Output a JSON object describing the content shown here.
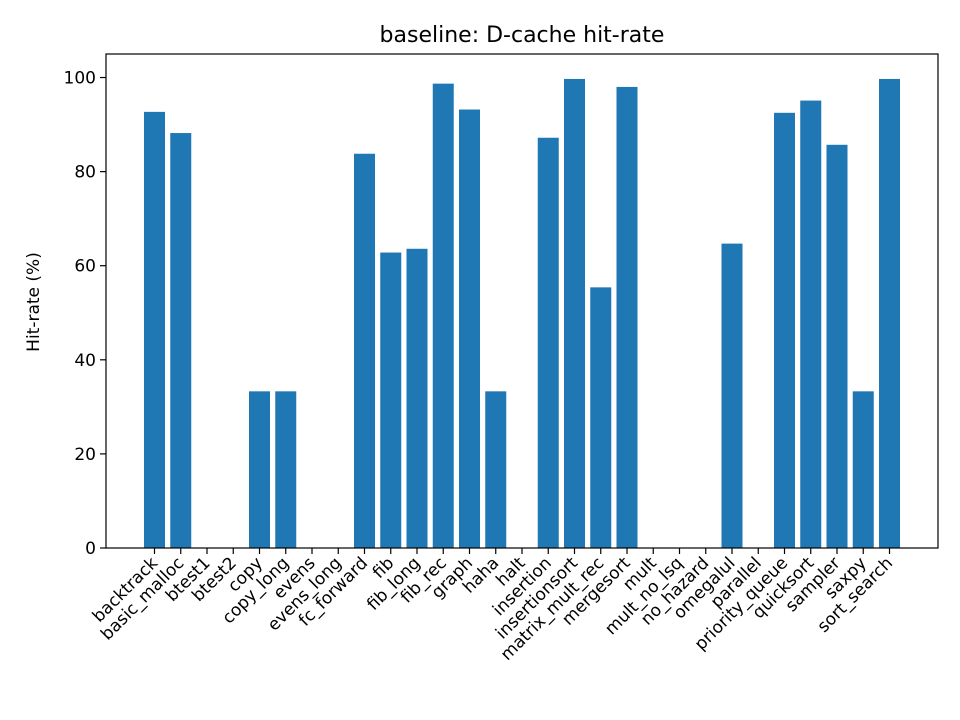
{
  "chart_data": {
    "type": "bar",
    "title": "baseline: D-cache hit-rate",
    "xlabel": "",
    "ylabel": "Hit-rate (%)",
    "ylim": [
      0,
      105
    ],
    "yticks": [
      0,
      20,
      40,
      60,
      80,
      100
    ],
    "grid": false,
    "bar_color": "#1f77b4",
    "categories": [
      "backtrack",
      "basic_malloc",
      "btest1",
      "btest2",
      "copy",
      "copy_long",
      "evens",
      "evens_long",
      "fc_forward",
      "fib",
      "fib_long",
      "fib_rec",
      "graph",
      "haha",
      "halt",
      "insertion",
      "insertionsort",
      "matrix_mult_rec",
      "mergesort",
      "mult",
      "mult_no_lsq",
      "no_hazard",
      "omegalul",
      "parallel",
      "priority_queue",
      "quicksort",
      "sampler",
      "saxpy",
      "sort_search"
    ],
    "values": [
      92.7,
      88.2,
      0,
      0,
      33.3,
      33.3,
      0,
      0,
      83.8,
      62.8,
      63.6,
      98.7,
      93.2,
      33.3,
      0,
      87.2,
      99.7,
      55.4,
      98.0,
      0,
      0,
      0,
      64.7,
      0,
      92.5,
      95.1,
      85.7,
      33.3,
      99.7
    ]
  }
}
